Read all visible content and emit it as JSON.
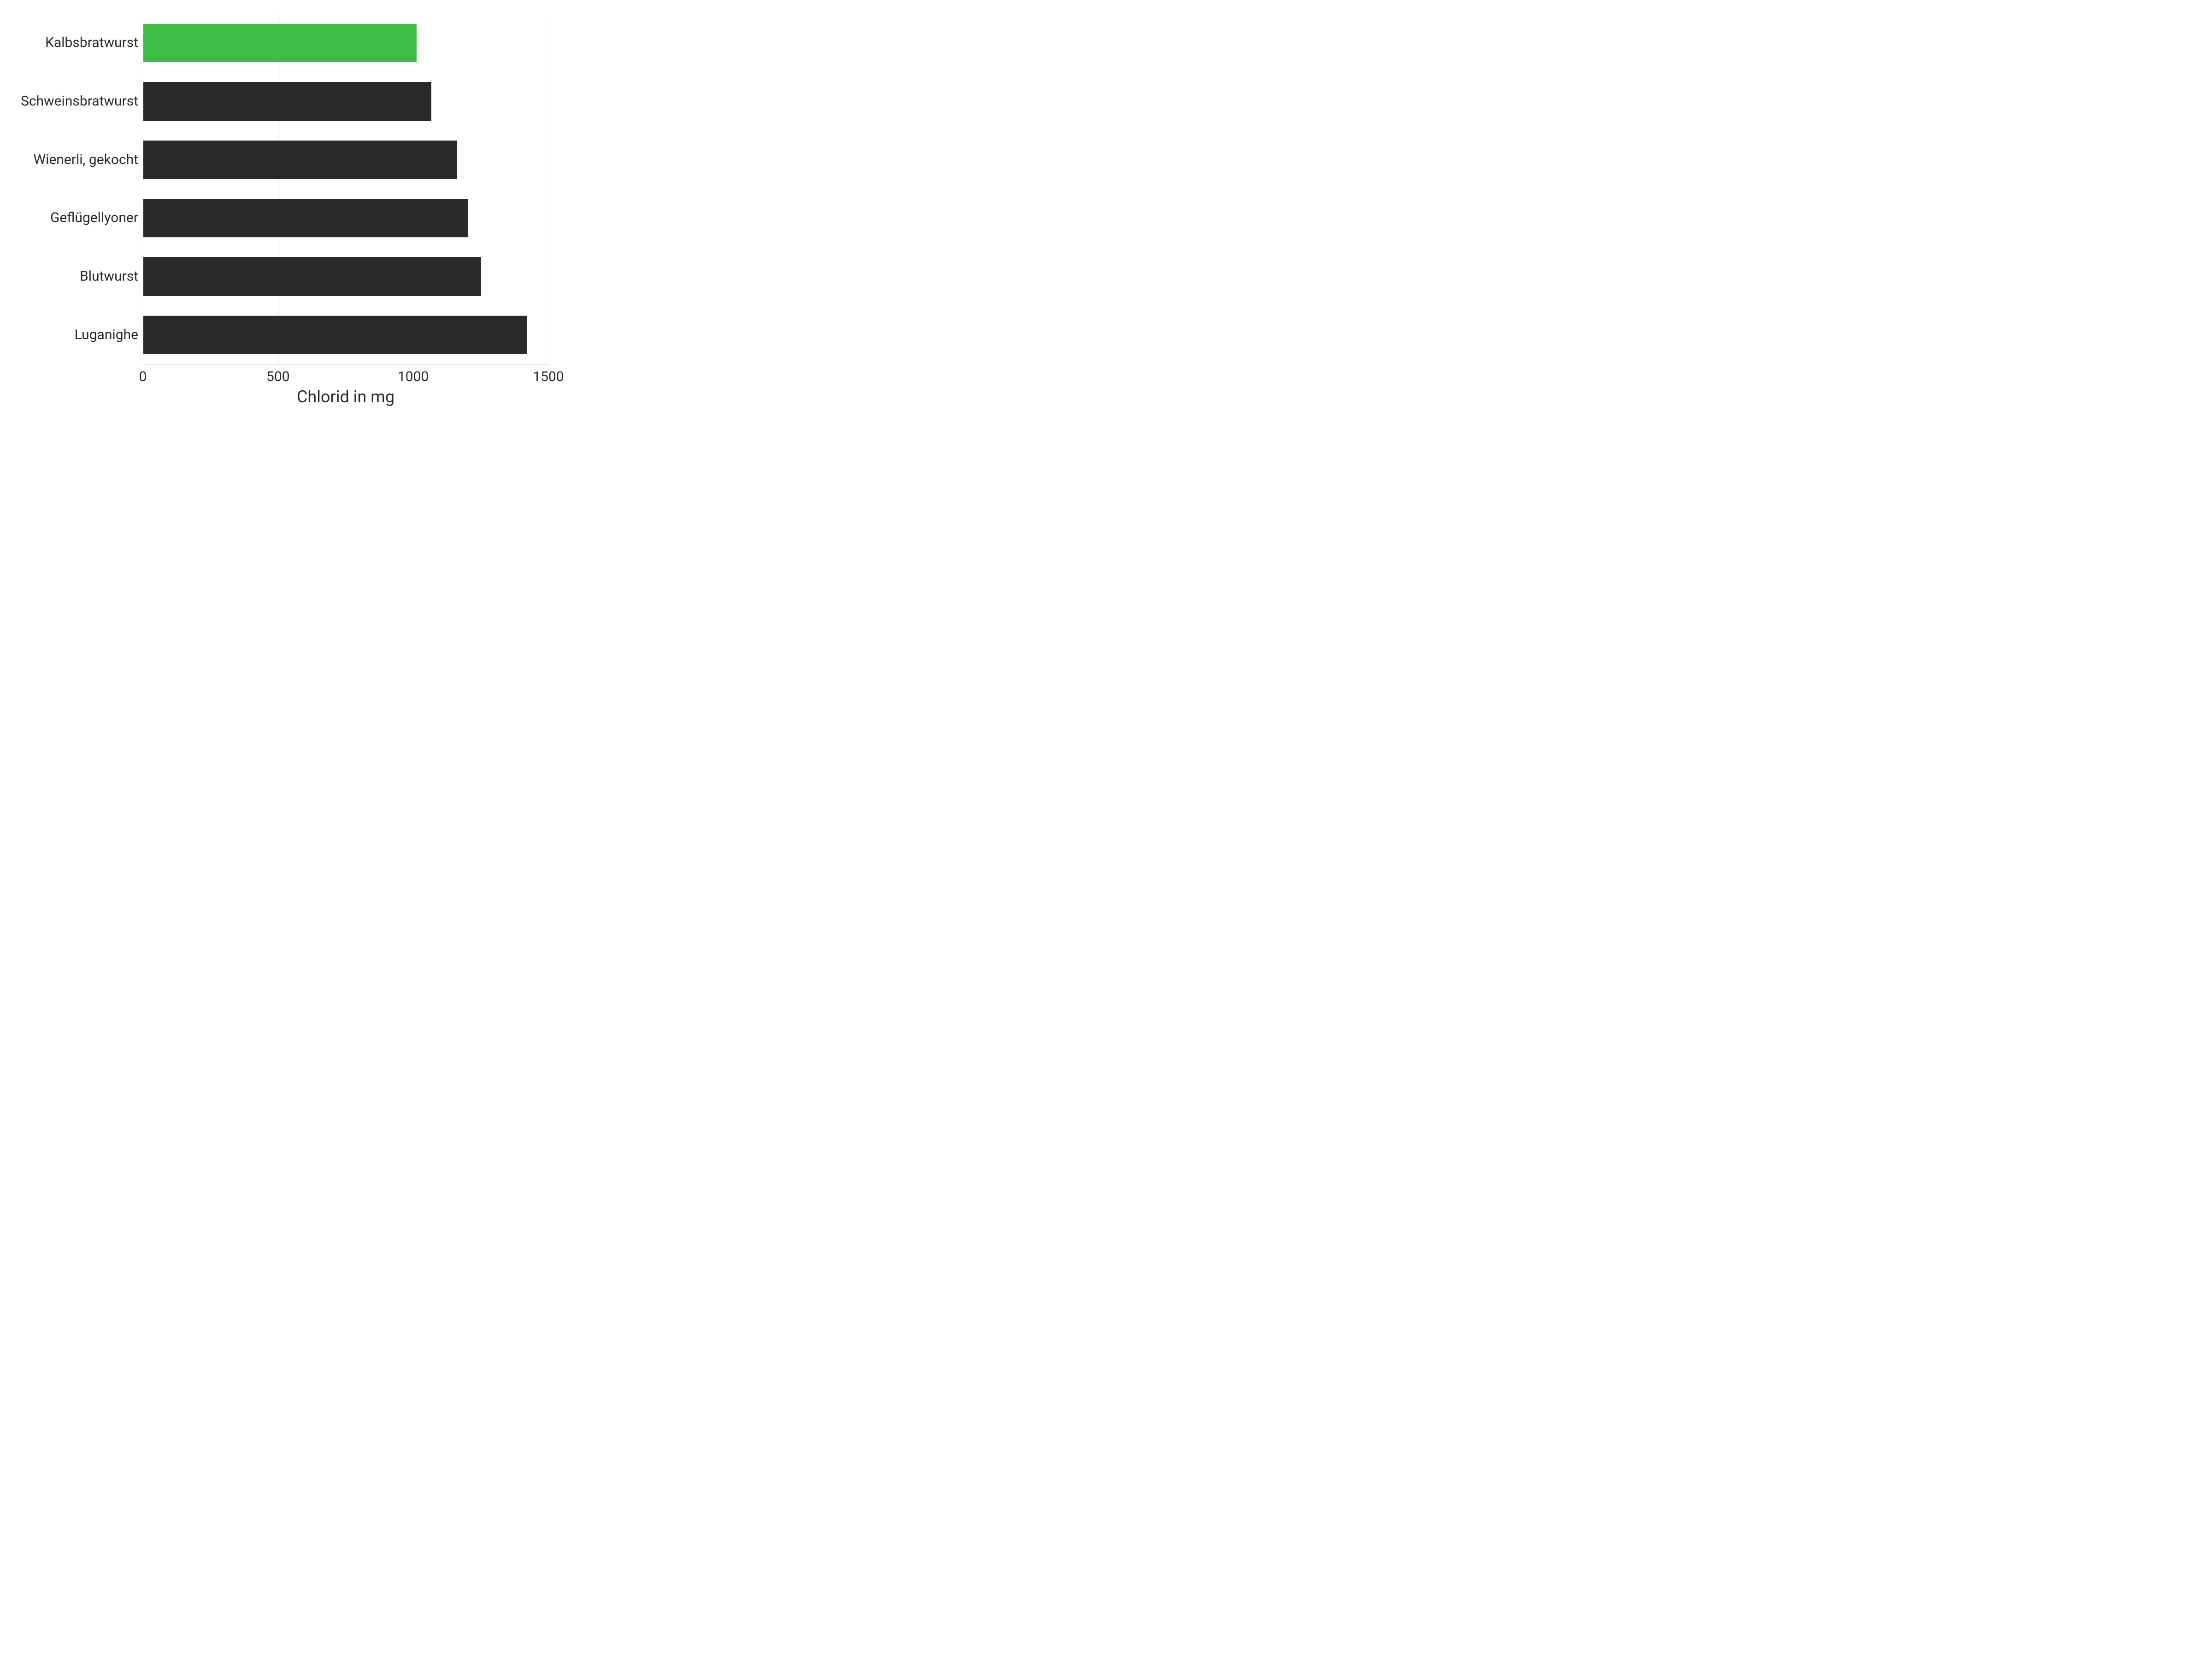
{
  "chart": {
    "type": "bar-horizontal",
    "background_color": "#ffffff",
    "grid_color": "#eeeeee",
    "axis_color": "#cccccc",
    "label_color": "#2a2a2a",
    "label_fontsize": 30,
    "x_axis": {
      "title": "Chlorid in mg",
      "title_fontsize": 36,
      "min": 0,
      "max": 1500,
      "ticks": [
        0,
        500,
        1000,
        1500
      ]
    },
    "bar_gap_ratio": 0.34,
    "bars": [
      {
        "label": "Kalbsbratwurst",
        "value": 1010,
        "color": "#3dbc46"
      },
      {
        "label": "Schweinsbratwurst",
        "value": 1065,
        "color": "#2a2a2a"
      },
      {
        "label": "Wienerli, gekocht",
        "value": 1160,
        "color": "#2a2a2a"
      },
      {
        "label": "Geflügellyoner",
        "value": 1200,
        "color": "#2a2a2a"
      },
      {
        "label": "Blutwurst",
        "value": 1250,
        "color": "#2a2a2a"
      },
      {
        "label": "Luganighe",
        "value": 1420,
        "color": "#2a2a2a"
      }
    ]
  }
}
